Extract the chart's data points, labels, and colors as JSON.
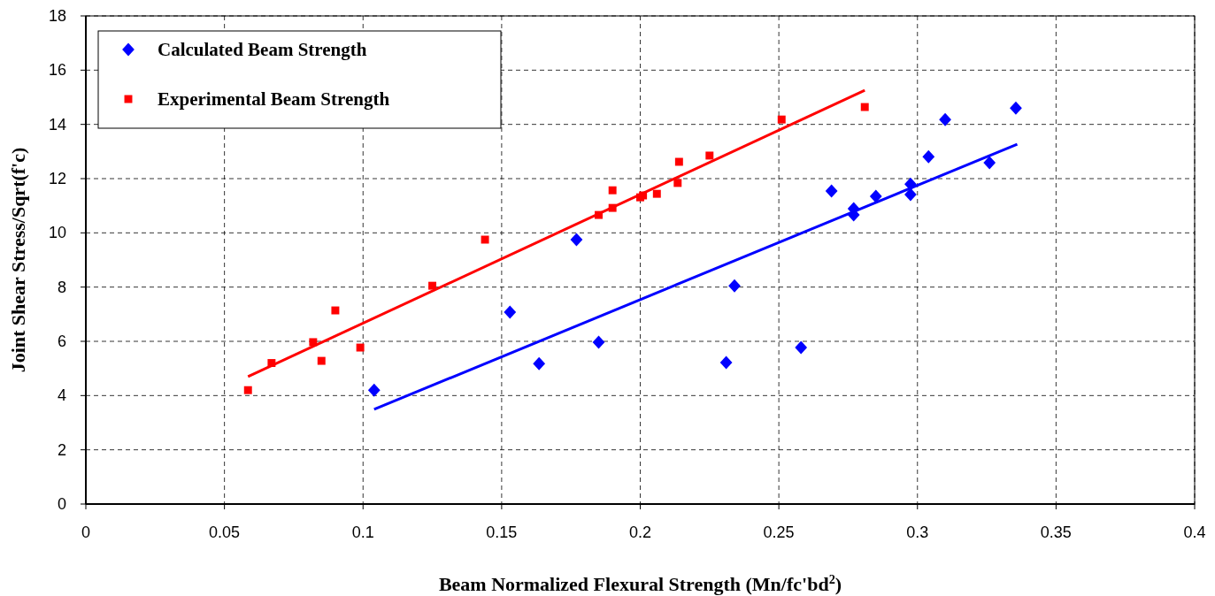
{
  "chart_data": {
    "type": "scatter",
    "xlabel": "Beam Normalized Flexural Strength (Mn/fc'bd$^{2}$)",
    "ylabel": "Joint Shear Stress/Sqrt(f'c)",
    "xlim": [
      0,
      0.4
    ],
    "xticks": [
      0,
      0.05,
      0.1,
      0.15,
      0.2,
      0.25,
      0.3,
      0.35,
      0.4
    ],
    "ylim": [
      0,
      18
    ],
    "yticks": [
      0,
      2,
      4,
      6,
      8,
      10,
      12,
      14,
      16,
      18
    ],
    "grid": true,
    "legend": "top left",
    "line_style": "dashed",
    "series": [
      {
        "name": "Calculated Beam Strength",
        "color": "#0000ff",
        "marker": "diamond",
        "x": [
          0.104,
          0.153,
          0.1635,
          0.177,
          0.185,
          0.231,
          0.234,
          0.258,
          0.269,
          0.277,
          0.277,
          0.285,
          0.2975,
          0.2975,
          0.304,
          0.31,
          0.326,
          0.3355
        ],
        "values": [
          4.2,
          7.08,
          5.18,
          9.75,
          5.97,
          5.22,
          8.05,
          5.77,
          11.54,
          10.89,
          10.66,
          11.35,
          11.8,
          11.41,
          12.81,
          14.18,
          12.59,
          14.6
        ]
      },
      {
        "name": "Experimental Beam Strength",
        "color": "#ff0000",
        "marker": "square",
        "x": [
          0.0585,
          0.067,
          0.082,
          0.085,
          0.09,
          0.099,
          0.125,
          0.144,
          0.185,
          0.19,
          0.19,
          0.2,
          0.201,
          0.206,
          0.2135,
          0.214,
          0.225,
          0.251,
          0.281
        ],
        "values": [
          4.2,
          5.2,
          5.97,
          5.28,
          7.14,
          5.77,
          8.05,
          9.75,
          10.66,
          11.57,
          10.92,
          11.31,
          11.38,
          11.44,
          11.84,
          12.62,
          12.85,
          14.18,
          14.64
        ]
      },
      {
        "color": "#0000ff",
        "type": "line",
        "marker": "none",
        "line_style": "solid",
        "x": [
          0.104,
          0.336
        ],
        "values": [
          3.49,
          13.27
        ]
      },
      {
        "color": "#ff0000",
        "type": "line",
        "marker": "none",
        "line_style": "solid",
        "x": [
          0.0585,
          0.281
        ],
        "values": [
          4.7,
          15.26
        ]
      }
    ]
  }
}
